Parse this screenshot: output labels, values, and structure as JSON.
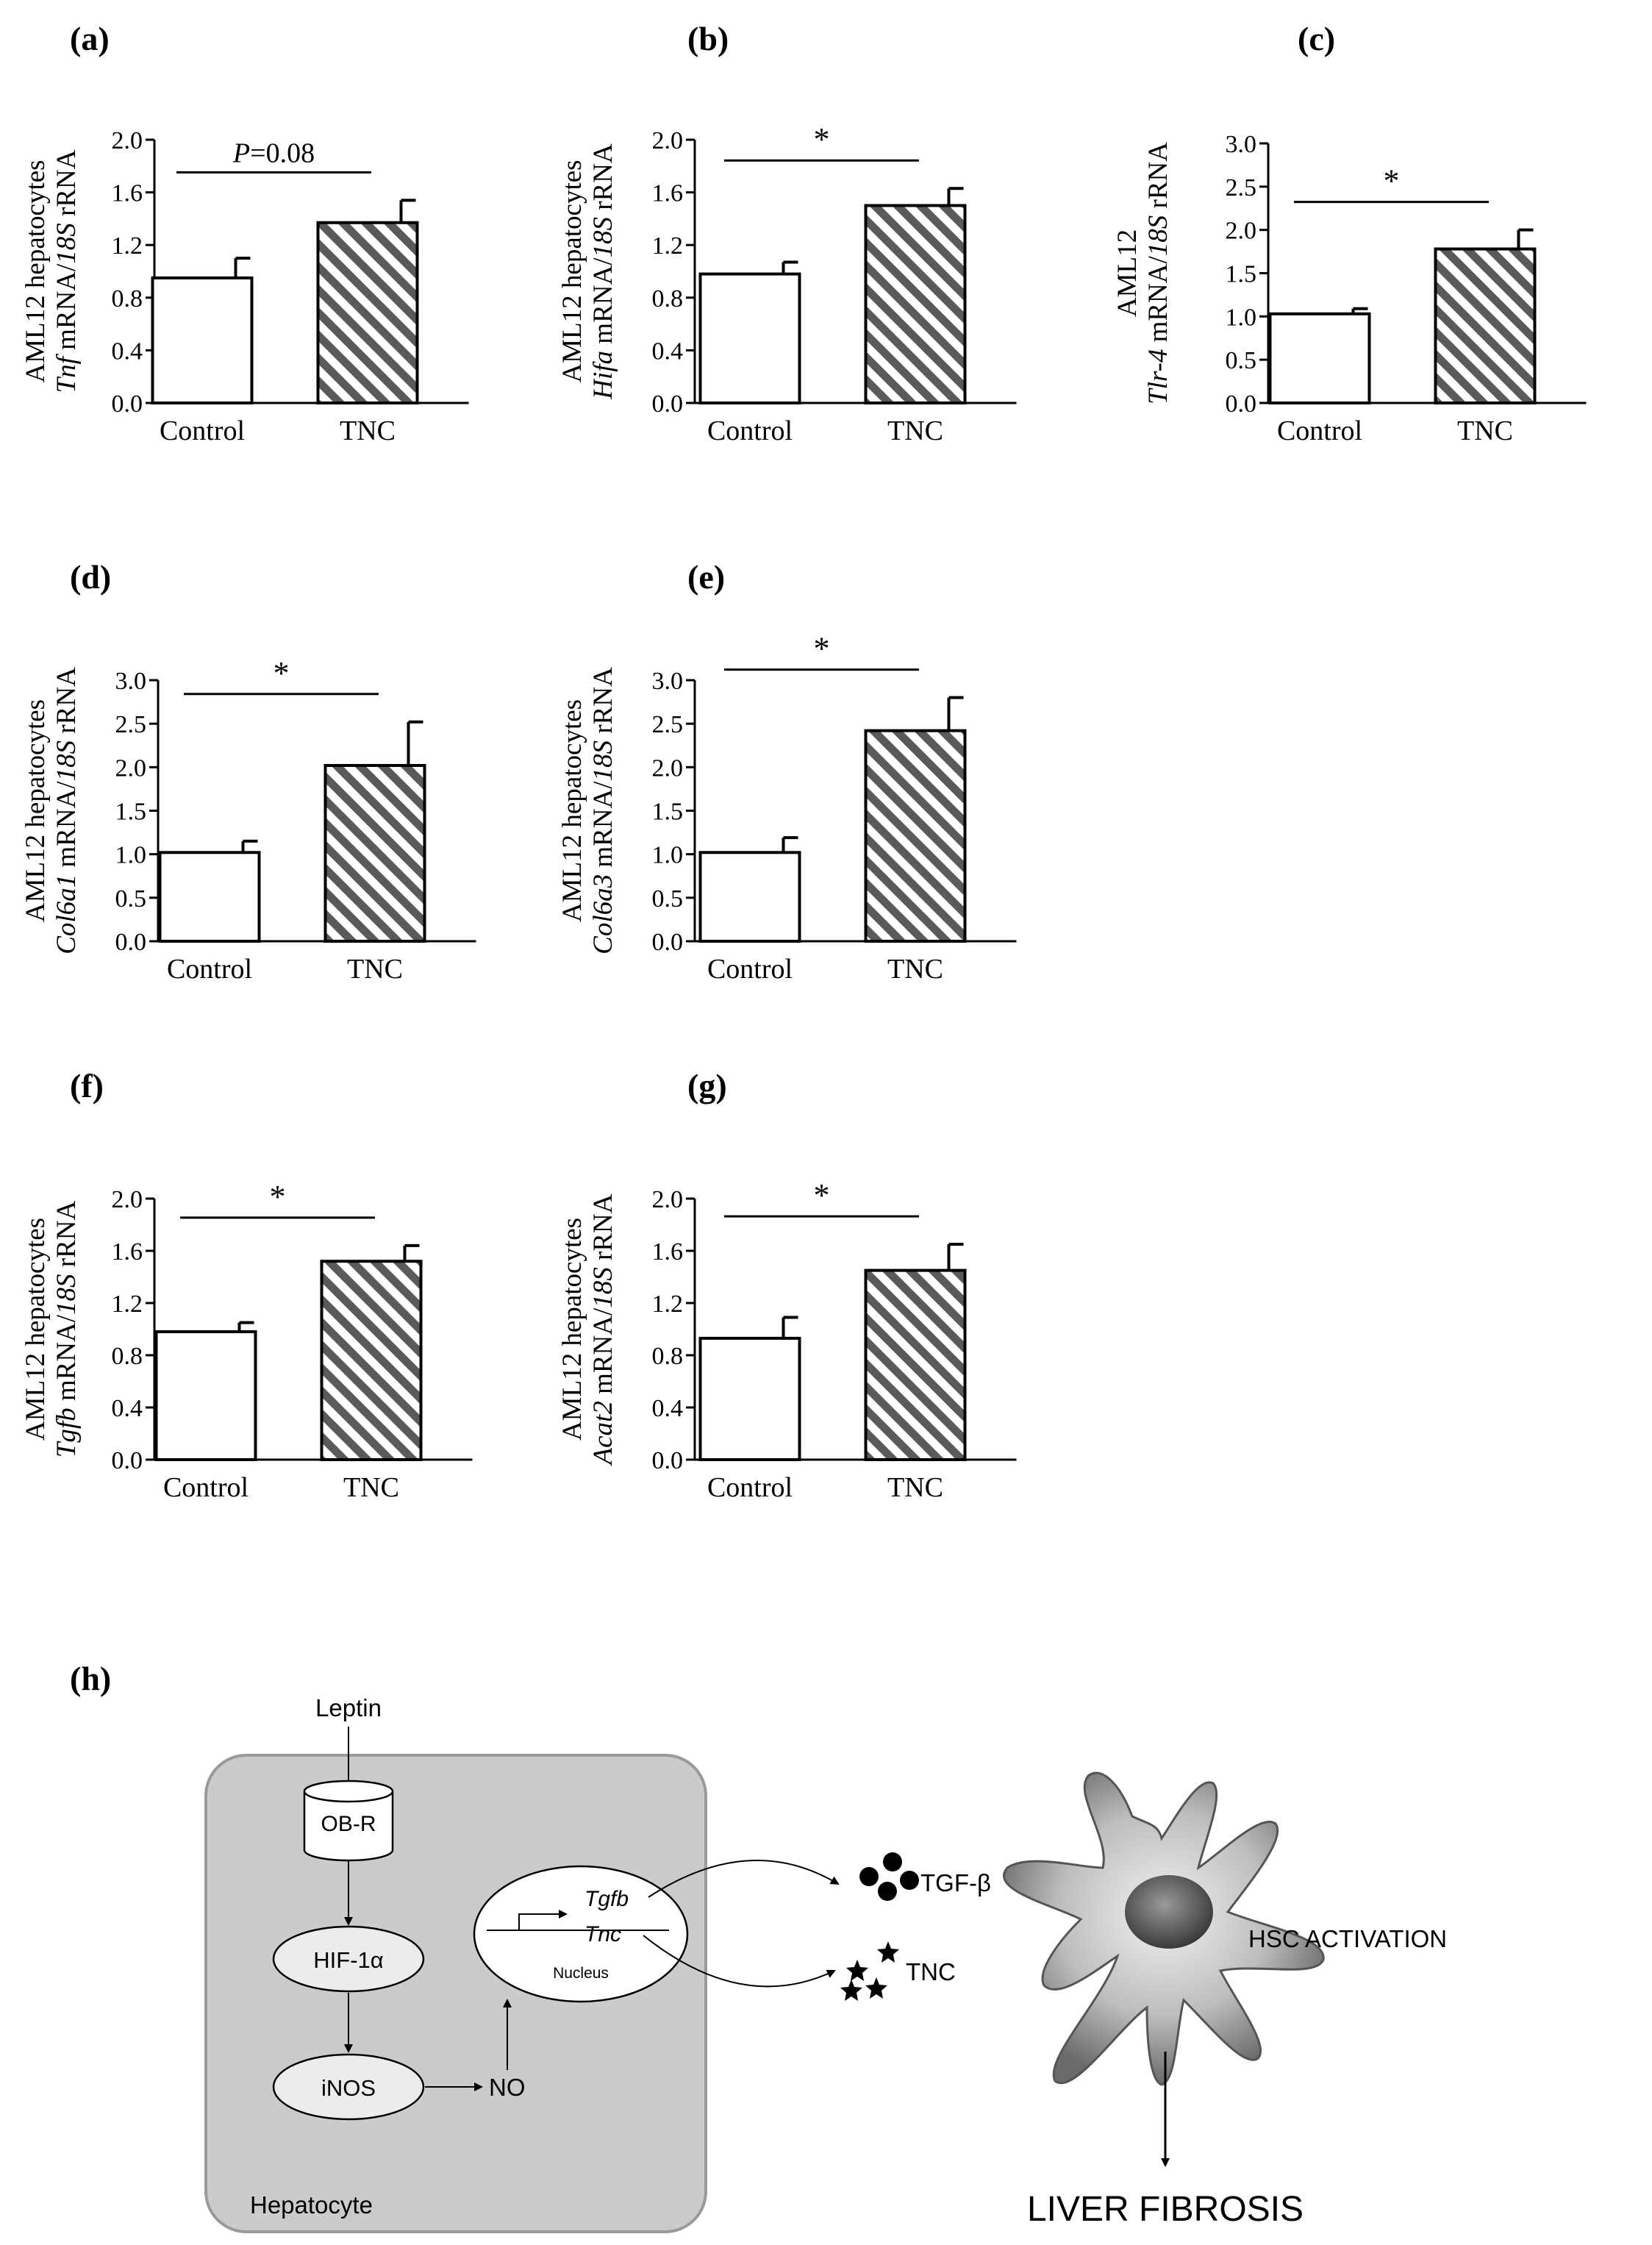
{
  "panels": [
    {
      "label": "(a)",
      "ylabel_line1": "AML12 hepatocytes",
      "ylabel_gene": "Tnf",
      "ylabel_mid": " mRNA/",
      "ylabel_ref": "18S",
      "ylabel_end": " rRNA",
      "significance": "P=0.08",
      "chart_data": {
        "type": "bar",
        "categories": [
          "Control",
          "TNC"
        ],
        "values": [
          0.95,
          1.37
        ],
        "errors": [
          0.15,
          0.17
        ],
        "ylim": [
          0,
          2.0
        ],
        "ticks": [
          "0.0",
          "0.4",
          "0.8",
          "1.2",
          "1.6",
          "2.0"
        ]
      }
    },
    {
      "label": "(b)",
      "ylabel_line1": "AML12 hepatocytes",
      "ylabel_gene": "Hifa",
      "ylabel_mid": " mRNA/",
      "ylabel_ref": "18S",
      "ylabel_end": " rRNA",
      "significance": "*",
      "chart_data": {
        "type": "bar",
        "categories": [
          "Control",
          "TNC"
        ],
        "values": [
          0.98,
          1.5
        ],
        "errors": [
          0.09,
          0.13
        ],
        "ylim": [
          0,
          2.0
        ],
        "ticks": [
          "0.0",
          "0.4",
          "0.8",
          "1.2",
          "1.6",
          "2.0"
        ]
      }
    },
    {
      "label": "(c)",
      "ylabel_line1": "AML12",
      "ylabel_gene": "Tlr-4",
      "ylabel_mid": " mRNA/",
      "ylabel_ref": "18S",
      "ylabel_end": " rRNA",
      "significance": "*",
      "chart_data": {
        "type": "bar",
        "categories": [
          "Control",
          "TNC"
        ],
        "values": [
          1.03,
          1.78
        ],
        "errors": [
          0.06,
          0.22
        ],
        "ylim": [
          0,
          3.0
        ],
        "ticks": [
          "0.0",
          "0.5",
          "1.0",
          "1.5",
          "2.0",
          "2.5",
          "3.0"
        ]
      }
    },
    {
      "label": "(d)",
      "ylabel_line1": "AML12 hepatocytes",
      "ylabel_gene": "Col6a1",
      "ylabel_mid": " mRNA/",
      "ylabel_ref": "18S",
      "ylabel_end": " rRNA",
      "significance": "*",
      "chart_data": {
        "type": "bar",
        "categories": [
          "Control",
          "TNC"
        ],
        "values": [
          1.02,
          2.02
        ],
        "errors": [
          0.13,
          0.5
        ],
        "ylim": [
          0,
          3.0
        ],
        "ticks": [
          "0.0",
          "0.5",
          "1.0",
          "1.5",
          "2.0",
          "2.5",
          "3.0"
        ]
      }
    },
    {
      "label": "(e)",
      "ylabel_line1": "AML12 hepatocytes",
      "ylabel_gene": "Col6a3",
      "ylabel_mid": " mRNA/",
      "ylabel_ref": "18S",
      "ylabel_end": " rRNA",
      "significance": "*",
      "chart_data": {
        "type": "bar",
        "categories": [
          "Control",
          "TNC"
        ],
        "values": [
          1.02,
          2.42
        ],
        "errors": [
          0.17,
          0.38
        ],
        "ylim": [
          0,
          3.0
        ],
        "ticks": [
          "0.0",
          "0.5",
          "1.0",
          "1.5",
          "2.0",
          "2.5",
          "3.0"
        ]
      }
    },
    {
      "label": "(f)",
      "ylabel_line1": "AML12 hepatocytes",
      "ylabel_gene": "Tgfb",
      "ylabel_mid": " mRNA/",
      "ylabel_ref": "18S",
      "ylabel_end": " rRNA",
      "significance": "*",
      "chart_data": {
        "type": "bar",
        "categories": [
          "Control",
          "TNC"
        ],
        "values": [
          0.98,
          1.52
        ],
        "errors": [
          0.07,
          0.12
        ],
        "ylim": [
          0,
          2.0
        ],
        "ticks": [
          "0.0",
          "0.4",
          "0.8",
          "1.2",
          "1.6",
          "2.0"
        ]
      }
    },
    {
      "label": "(g)",
      "ylabel_line1": "AML12 hepatocytes",
      "ylabel_gene": "Acat2",
      "ylabel_mid": " mRNA/",
      "ylabel_ref": "18S",
      "ylabel_end": " rRNA",
      "significance": "*",
      "chart_data": {
        "type": "bar",
        "categories": [
          "Control",
          "TNC"
        ],
        "values": [
          0.93,
          1.45
        ],
        "errors": [
          0.16,
          0.2
        ],
        "ylim": [
          0,
          2.0
        ],
        "ticks": [
          "0.0",
          "0.4",
          "0.8",
          "1.2",
          "1.6",
          "2.0"
        ]
      }
    }
  ],
  "diagram": {
    "label": "(h)",
    "leptin": "Leptin",
    "receptor": "OB-R",
    "hif": "HIF-1α",
    "inos": "iNOS",
    "no": "NO",
    "gene1": "Tgfb",
    "gene2": "Tnc",
    "nucleus": "Nucleus",
    "tgf_beta": "TGF-β",
    "tnc": "TNC",
    "hsc": "HSC ACTIVATION",
    "hepatocyte": "Hepatocyte",
    "fibrosis": "LIVER FIBROSIS"
  }
}
